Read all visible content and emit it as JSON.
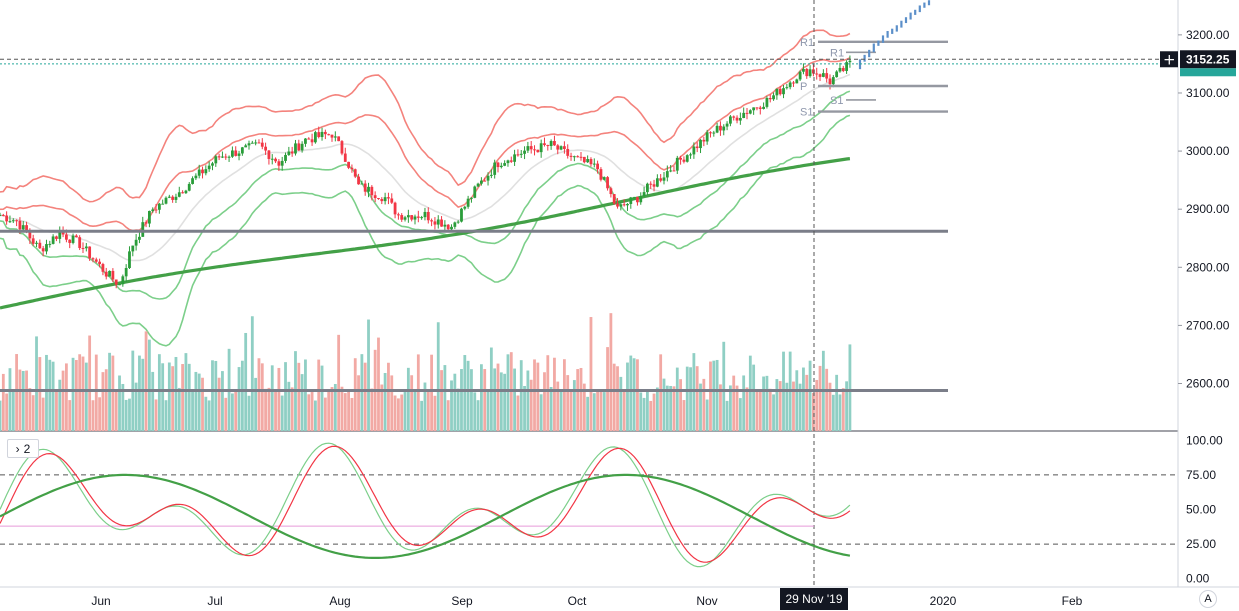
{
  "chart_data": {
    "type": "candlestick",
    "symbol_price": "3152.25",
    "crosshair_date": "29 Nov '19",
    "x_ticks": [
      "Jun",
      "Jul",
      "Aug",
      "Sep",
      "Oct",
      "Nov",
      "2020",
      "Feb"
    ],
    "price_axis": {
      "ticks": [
        "3200.00",
        "3100.00",
        "3000.00",
        "2900.00",
        "2800.00",
        "2700.00",
        "2600.00"
      ],
      "ylim": [
        2520,
        3260
      ]
    },
    "osc_axis": {
      "ticks": [
        "100.00",
        "75.00",
        "50.00",
        "25.00",
        "0.00"
      ],
      "ylim": [
        -6,
        106
      ]
    },
    "pivots": [
      {
        "label": "R1",
        "value": 3188
      },
      {
        "label": "R1",
        "value": 3170
      },
      {
        "label": "P",
        "value": 3112
      },
      {
        "label": "S1",
        "value": 3088
      },
      {
        "label": "S1",
        "value": 3068
      }
    ],
    "horizontal_levels": [
      2862,
      2588
    ],
    "osc_levels": [
      75,
      25
    ],
    "legend_collapsed_count": "2",
    "auto_label": "A",
    "colors": {
      "up": "#26a69a",
      "up_candle": "#2a9d3a",
      "down": "#f23645",
      "band_red": "#f4837d",
      "band_green": "#7ccf8a",
      "sma_green": "#43a047",
      "vol_up": "#8fcfc4",
      "vol_down": "#f2a9a4",
      "level": "#7b7e89",
      "forecast": "#5b8fc9"
    }
  }
}
